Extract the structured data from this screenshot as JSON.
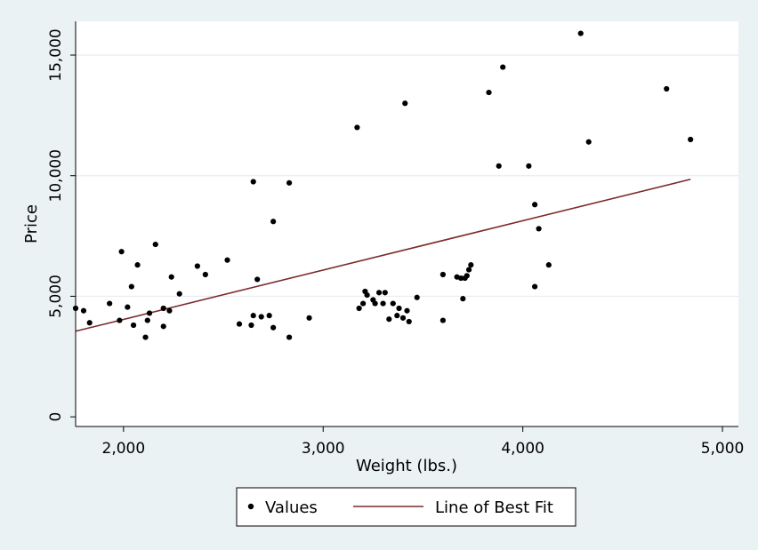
{
  "chart_data": {
    "type": "scatter",
    "title": "",
    "xlabel": "Weight (lbs.)",
    "ylabel": "Price",
    "xlim": [
      1760,
      5080
    ],
    "ylim": [
      -400,
      16400
    ],
    "x_ticks": [
      2000,
      3000,
      4000,
      5000
    ],
    "x_tick_labels": [
      "2,000",
      "3,000",
      "4,000",
      "5,000"
    ],
    "y_ticks": [
      0,
      5000,
      10000,
      15000
    ],
    "y_tick_labels": [
      "0",
      "5,000",
      "10,000",
      "15,000"
    ],
    "grid": "horizontal",
    "legend_position": "bottom",
    "colors": {
      "background": "#eaf2f3",
      "plot_area": "#ffffff",
      "points": "#000000",
      "fit_line": "#7b2a2a",
      "grid": "#e6eef0"
    },
    "series": [
      {
        "name": "Values",
        "type": "scatter",
        "points": [
          [
            1760,
            4500
          ],
          [
            1800,
            4400
          ],
          [
            1830,
            3900
          ],
          [
            1930,
            4700
          ],
          [
            1980,
            4000
          ],
          [
            1990,
            6850
          ],
          [
            2020,
            4550
          ],
          [
            2040,
            5400
          ],
          [
            2050,
            3800
          ],
          [
            2070,
            6300
          ],
          [
            2110,
            3300
          ],
          [
            2120,
            4000
          ],
          [
            2130,
            4300
          ],
          [
            2160,
            7150
          ],
          [
            2200,
            4500
          ],
          [
            2200,
            3750
          ],
          [
            2230,
            4400
          ],
          [
            2240,
            5800
          ],
          [
            2280,
            5100
          ],
          [
            2370,
            6250
          ],
          [
            2410,
            5900
          ],
          [
            2520,
            6500
          ],
          [
            2580,
            3850
          ],
          [
            2640,
            3800
          ],
          [
            2650,
            4200
          ],
          [
            2650,
            9750
          ],
          [
            2670,
            5700
          ],
          [
            2690,
            4150
          ],
          [
            2730,
            4200
          ],
          [
            2750,
            3700
          ],
          [
            2750,
            8100
          ],
          [
            2830,
            3300
          ],
          [
            2830,
            9700
          ],
          [
            2930,
            4100
          ],
          [
            3170,
            12000
          ],
          [
            3180,
            4500
          ],
          [
            3200,
            4700
          ],
          [
            3210,
            5200
          ],
          [
            3220,
            5050
          ],
          [
            3250,
            4850
          ],
          [
            3260,
            4700
          ],
          [
            3280,
            5150
          ],
          [
            3300,
            4700
          ],
          [
            3310,
            5150
          ],
          [
            3330,
            4050
          ],
          [
            3350,
            4700
          ],
          [
            3370,
            4200
          ],
          [
            3380,
            4500
          ],
          [
            3400,
            4100
          ],
          [
            3410,
            13000
          ],
          [
            3420,
            4400
          ],
          [
            3430,
            3950
          ],
          [
            3470,
            4950
          ],
          [
            3600,
            4000
          ],
          [
            3600,
            5900
          ],
          [
            3670,
            5800
          ],
          [
            3690,
            5750
          ],
          [
            3700,
            4900
          ],
          [
            3710,
            5750
          ],
          [
            3720,
            5850
          ],
          [
            3730,
            6100
          ],
          [
            3740,
            6300
          ],
          [
            3830,
            13450
          ],
          [
            3880,
            10400
          ],
          [
            3900,
            14500
          ],
          [
            4030,
            10400
          ],
          [
            4060,
            5400
          ],
          [
            4060,
            8800
          ],
          [
            4080,
            7800
          ],
          [
            4130,
            6300
          ],
          [
            4290,
            15900
          ],
          [
            4330,
            11400
          ],
          [
            4720,
            13600
          ],
          [
            4840,
            11500
          ]
        ]
      },
      {
        "name": "Line of Best Fit",
        "type": "line",
        "points": [
          [
            1760,
            3550
          ],
          [
            4840,
            9850
          ]
        ]
      }
    ]
  }
}
